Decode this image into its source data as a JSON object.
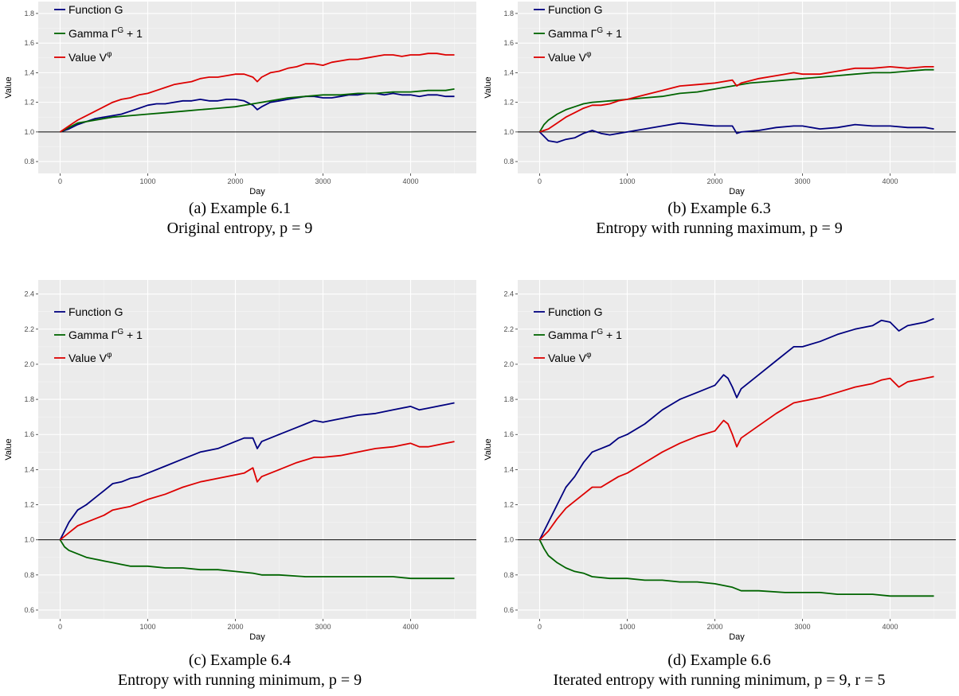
{
  "chart_data": [
    {
      "type": "line",
      "caption": "(a) Example 6.1",
      "subcaption": "Original entropy, p = 9",
      "xlabel": "Day",
      "ylabel": "Value",
      "xlim": [
        -250,
        4750
      ],
      "ylim": [
        0.72,
        1.88
      ],
      "xticks": [
        0,
        1000,
        2000,
        3000,
        4000
      ],
      "yticks": [
        0.8,
        1.0,
        1.2,
        1.4,
        1.6,
        1.8
      ],
      "hline": 1.0,
      "legend_position": "top-left",
      "series": [
        {
          "name": "Function G",
          "color": "#00007f",
          "x": [
            0,
            100,
            200,
            300,
            400,
            500,
            600,
            700,
            800,
            900,
            1000,
            1100,
            1200,
            1300,
            1400,
            1500,
            1600,
            1700,
            1800,
            1900,
            2000,
            2100,
            2200,
            2250,
            2300,
            2400,
            2500,
            2600,
            2700,
            2800,
            2900,
            3000,
            3100,
            3200,
            3300,
            3400,
            3500,
            3600,
            3700,
            3800,
            3900,
            4000,
            4100,
            4200,
            4300,
            4400,
            4500
          ],
          "y": [
            1.0,
            1.02,
            1.05,
            1.07,
            1.09,
            1.1,
            1.11,
            1.12,
            1.14,
            1.16,
            1.18,
            1.19,
            1.19,
            1.2,
            1.21,
            1.21,
            1.22,
            1.21,
            1.21,
            1.22,
            1.22,
            1.21,
            1.18,
            1.15,
            1.17,
            1.2,
            1.21,
            1.22,
            1.23,
            1.24,
            1.24,
            1.23,
            1.23,
            1.24,
            1.25,
            1.25,
            1.26,
            1.26,
            1.25,
            1.26,
            1.25,
            1.25,
            1.24,
            1.25,
            1.25,
            1.24,
            1.24
          ]
        },
        {
          "name": "Gamma Γ^G + 1",
          "color": "#006400",
          "x": [
            0,
            200,
            400,
            600,
            800,
            1000,
            1200,
            1400,
            1600,
            1800,
            2000,
            2200,
            2400,
            2600,
            2800,
            3000,
            3200,
            3400,
            3600,
            3800,
            4000,
            4200,
            4400,
            4500
          ],
          "y": [
            1.0,
            1.06,
            1.08,
            1.1,
            1.11,
            1.12,
            1.13,
            1.14,
            1.15,
            1.16,
            1.17,
            1.19,
            1.21,
            1.23,
            1.24,
            1.25,
            1.25,
            1.26,
            1.26,
            1.27,
            1.27,
            1.28,
            1.28,
            1.29
          ]
        },
        {
          "name": "Value Vφ",
          "color": "#dd0000",
          "x": [
            0,
            100,
            200,
            300,
            400,
            500,
            600,
            700,
            800,
            900,
            1000,
            1100,
            1200,
            1300,
            1400,
            1500,
            1600,
            1700,
            1800,
            1900,
            2000,
            2100,
            2200,
            2250,
            2300,
            2400,
            2500,
            2600,
            2700,
            2800,
            2900,
            3000,
            3100,
            3200,
            3300,
            3400,
            3500,
            3600,
            3700,
            3800,
            3900,
            4000,
            4100,
            4200,
            4300,
            4400,
            4500
          ],
          "y": [
            1.0,
            1.04,
            1.08,
            1.11,
            1.14,
            1.17,
            1.2,
            1.22,
            1.23,
            1.25,
            1.26,
            1.28,
            1.3,
            1.32,
            1.33,
            1.34,
            1.36,
            1.37,
            1.37,
            1.38,
            1.39,
            1.39,
            1.37,
            1.34,
            1.37,
            1.4,
            1.41,
            1.43,
            1.44,
            1.46,
            1.46,
            1.45,
            1.47,
            1.48,
            1.49,
            1.49,
            1.5,
            1.51,
            1.52,
            1.52,
            1.51,
            1.52,
            1.52,
            1.53,
            1.53,
            1.52,
            1.52
          ]
        }
      ]
    },
    {
      "type": "line",
      "caption": "(b) Example 6.3",
      "subcaption": "Entropy with running maximum, p = 9",
      "xlabel": "Day",
      "ylabel": "Value",
      "xlim": [
        -250,
        4750
      ],
      "ylim": [
        0.72,
        1.88
      ],
      "xticks": [
        0,
        1000,
        2000,
        3000,
        4000
      ],
      "yticks": [
        0.8,
        1.0,
        1.2,
        1.4,
        1.6,
        1.8
      ],
      "hline": 1.0,
      "legend_position": "top-left",
      "series": [
        {
          "name": "Function G",
          "color": "#00007f",
          "x": [
            0,
            50,
            100,
            200,
            300,
            400,
            500,
            600,
            700,
            800,
            900,
            1000,
            1200,
            1400,
            1600,
            1800,
            2000,
            2200,
            2250,
            2300,
            2500,
            2700,
            2900,
            3000,
            3200,
            3400,
            3600,
            3800,
            4000,
            4200,
            4400,
            4500
          ],
          "y": [
            1.0,
            0.97,
            0.94,
            0.93,
            0.95,
            0.96,
            0.99,
            1.01,
            0.99,
            0.98,
            0.99,
            1.0,
            1.02,
            1.04,
            1.06,
            1.05,
            1.04,
            1.04,
            0.99,
            1.0,
            1.01,
            1.03,
            1.04,
            1.04,
            1.02,
            1.03,
            1.05,
            1.04,
            1.04,
            1.03,
            1.03,
            1.02
          ]
        },
        {
          "name": "Gamma Γ^G + 1",
          "color": "#006400",
          "x": [
            0,
            50,
            100,
            200,
            300,
            400,
            500,
            600,
            800,
            1000,
            1200,
            1400,
            1600,
            1800,
            2000,
            2200,
            2400,
            2600,
            2800,
            3000,
            3200,
            3400,
            3600,
            3800,
            4000,
            4200,
            4400,
            4500
          ],
          "y": [
            1.0,
            1.05,
            1.08,
            1.12,
            1.15,
            1.17,
            1.19,
            1.2,
            1.21,
            1.22,
            1.23,
            1.24,
            1.26,
            1.27,
            1.29,
            1.31,
            1.33,
            1.34,
            1.35,
            1.36,
            1.37,
            1.38,
            1.39,
            1.4,
            1.4,
            1.41,
            1.42,
            1.42
          ]
        },
        {
          "name": "Value Vφ",
          "color": "#dd0000",
          "x": [
            0,
            100,
            200,
            300,
            400,
            500,
            600,
            700,
            800,
            900,
            1000,
            1200,
            1400,
            1600,
            1800,
            2000,
            2200,
            2250,
            2300,
            2500,
            2700,
            2900,
            3000,
            3200,
            3400,
            3600,
            3800,
            4000,
            4200,
            4400,
            4500
          ],
          "y": [
            1.0,
            1.02,
            1.06,
            1.1,
            1.13,
            1.16,
            1.18,
            1.18,
            1.19,
            1.21,
            1.22,
            1.25,
            1.28,
            1.31,
            1.32,
            1.33,
            1.35,
            1.31,
            1.33,
            1.36,
            1.38,
            1.4,
            1.39,
            1.39,
            1.41,
            1.43,
            1.43,
            1.44,
            1.43,
            1.44,
            1.44
          ]
        }
      ]
    },
    {
      "type": "line",
      "caption": "(c) Example 6.4",
      "subcaption": "Entropy with running minimum, p = 9",
      "xlabel": "Day",
      "ylabel": "Value",
      "xlim": [
        -250,
        4750
      ],
      "ylim": [
        0.55,
        2.48
      ],
      "xticks": [
        0,
        1000,
        2000,
        3000,
        4000
      ],
      "yticks": [
        0.6,
        0.8,
        1.0,
        1.2,
        1.4,
        1.6,
        1.8,
        2.0,
        2.2,
        2.4
      ],
      "hline": 1.0,
      "legend_position": "top-left",
      "series": [
        {
          "name": "Function G",
          "color": "#00007f",
          "x": [
            0,
            100,
            200,
            300,
            400,
            500,
            600,
            700,
            800,
            900,
            1000,
            1200,
            1400,
            1600,
            1800,
            2000,
            2100,
            2200,
            2250,
            2300,
            2500,
            2700,
            2900,
            3000,
            3200,
            3400,
            3600,
            3800,
            4000,
            4100,
            4200,
            4400,
            4500
          ],
          "y": [
            1.0,
            1.1,
            1.17,
            1.2,
            1.24,
            1.28,
            1.32,
            1.33,
            1.35,
            1.36,
            1.38,
            1.42,
            1.46,
            1.5,
            1.52,
            1.56,
            1.58,
            1.58,
            1.52,
            1.56,
            1.6,
            1.64,
            1.68,
            1.67,
            1.69,
            1.71,
            1.72,
            1.74,
            1.76,
            1.74,
            1.75,
            1.77,
            1.78
          ]
        },
        {
          "name": "Gamma Γ^G + 1",
          "color": "#006400",
          "x": [
            0,
            50,
            100,
            200,
            300,
            400,
            500,
            600,
            700,
            800,
            1000,
            1200,
            1400,
            1600,
            1800,
            2000,
            2200,
            2300,
            2500,
            2800,
            3000,
            3200,
            3400,
            3600,
            3800,
            4000,
            4200,
            4400,
            4500
          ],
          "y": [
            1.0,
            0.96,
            0.94,
            0.92,
            0.9,
            0.89,
            0.88,
            0.87,
            0.86,
            0.85,
            0.85,
            0.84,
            0.84,
            0.83,
            0.83,
            0.82,
            0.81,
            0.8,
            0.8,
            0.79,
            0.79,
            0.79,
            0.79,
            0.79,
            0.79,
            0.78,
            0.78,
            0.78,
            0.78
          ]
        },
        {
          "name": "Value Vφ",
          "color": "#dd0000",
          "x": [
            0,
            100,
            200,
            300,
            400,
            500,
            600,
            700,
            800,
            900,
            1000,
            1200,
            1400,
            1600,
            1800,
            2000,
            2100,
            2200,
            2250,
            2300,
            2500,
            2700,
            2900,
            3000,
            3200,
            3400,
            3600,
            3800,
            4000,
            4100,
            4200,
            4400,
            4500
          ],
          "y": [
            1.0,
            1.04,
            1.08,
            1.1,
            1.12,
            1.14,
            1.17,
            1.18,
            1.19,
            1.21,
            1.23,
            1.26,
            1.3,
            1.33,
            1.35,
            1.37,
            1.38,
            1.41,
            1.33,
            1.36,
            1.4,
            1.44,
            1.47,
            1.47,
            1.48,
            1.5,
            1.52,
            1.53,
            1.55,
            1.53,
            1.53,
            1.55,
            1.56
          ]
        }
      ]
    },
    {
      "type": "line",
      "caption": "(d) Example 6.6",
      "subcaption": "Iterated entropy with running minimum, p = 9, r = 5",
      "xlabel": "Day",
      "ylabel": "Value",
      "xlim": [
        -250,
        4750
      ],
      "ylim": [
        0.55,
        2.48
      ],
      "xticks": [
        0,
        1000,
        2000,
        3000,
        4000
      ],
      "yticks": [
        0.6,
        0.8,
        1.0,
        1.2,
        1.4,
        1.6,
        1.8,
        2.0,
        2.2,
        2.4
      ],
      "hline": 1.0,
      "legend_position": "top-left",
      "series": [
        {
          "name": "Function G",
          "color": "#00007f",
          "x": [
            0,
            100,
            200,
            300,
            400,
            500,
            600,
            700,
            800,
            900,
            1000,
            1200,
            1400,
            1600,
            1800,
            2000,
            2100,
            2150,
            2200,
            2250,
            2300,
            2500,
            2700,
            2900,
            3000,
            3200,
            3400,
            3600,
            3800,
            3900,
            4000,
            4100,
            4200,
            4400,
            4500
          ],
          "y": [
            1.0,
            1.1,
            1.2,
            1.3,
            1.36,
            1.44,
            1.5,
            1.52,
            1.54,
            1.58,
            1.6,
            1.66,
            1.74,
            1.8,
            1.84,
            1.88,
            1.94,
            1.92,
            1.87,
            1.81,
            1.86,
            1.94,
            2.02,
            2.1,
            2.1,
            2.13,
            2.17,
            2.2,
            2.22,
            2.25,
            2.24,
            2.19,
            2.22,
            2.24,
            2.26
          ]
        },
        {
          "name": "Gamma Γ^G + 1",
          "color": "#006400",
          "x": [
            0,
            50,
            100,
            200,
            300,
            400,
            500,
            600,
            800,
            1000,
            1200,
            1400,
            1600,
            1800,
            2000,
            2200,
            2300,
            2500,
            2800,
            3000,
            3200,
            3400,
            3600,
            3800,
            4000,
            4200,
            4400,
            4500
          ],
          "y": [
            1.0,
            0.95,
            0.91,
            0.87,
            0.84,
            0.82,
            0.81,
            0.79,
            0.78,
            0.78,
            0.77,
            0.77,
            0.76,
            0.76,
            0.75,
            0.73,
            0.71,
            0.71,
            0.7,
            0.7,
            0.7,
            0.69,
            0.69,
            0.69,
            0.68,
            0.68,
            0.68,
            0.68
          ]
        },
        {
          "name": "Value Vφ",
          "color": "#dd0000",
          "x": [
            0,
            100,
            200,
            300,
            400,
            500,
            600,
            700,
            800,
            900,
            1000,
            1200,
            1400,
            1600,
            1800,
            2000,
            2100,
            2150,
            2200,
            2250,
            2300,
            2500,
            2700,
            2900,
            3000,
            3200,
            3400,
            3600,
            3800,
            3900,
            4000,
            4100,
            4200,
            4400,
            4500
          ],
          "y": [
            1.0,
            1.05,
            1.12,
            1.18,
            1.22,
            1.26,
            1.3,
            1.3,
            1.33,
            1.36,
            1.38,
            1.44,
            1.5,
            1.55,
            1.59,
            1.62,
            1.68,
            1.66,
            1.6,
            1.53,
            1.58,
            1.65,
            1.72,
            1.78,
            1.79,
            1.81,
            1.84,
            1.87,
            1.89,
            1.91,
            1.92,
            1.87,
            1.9,
            1.92,
            1.93
          ]
        }
      ]
    }
  ]
}
